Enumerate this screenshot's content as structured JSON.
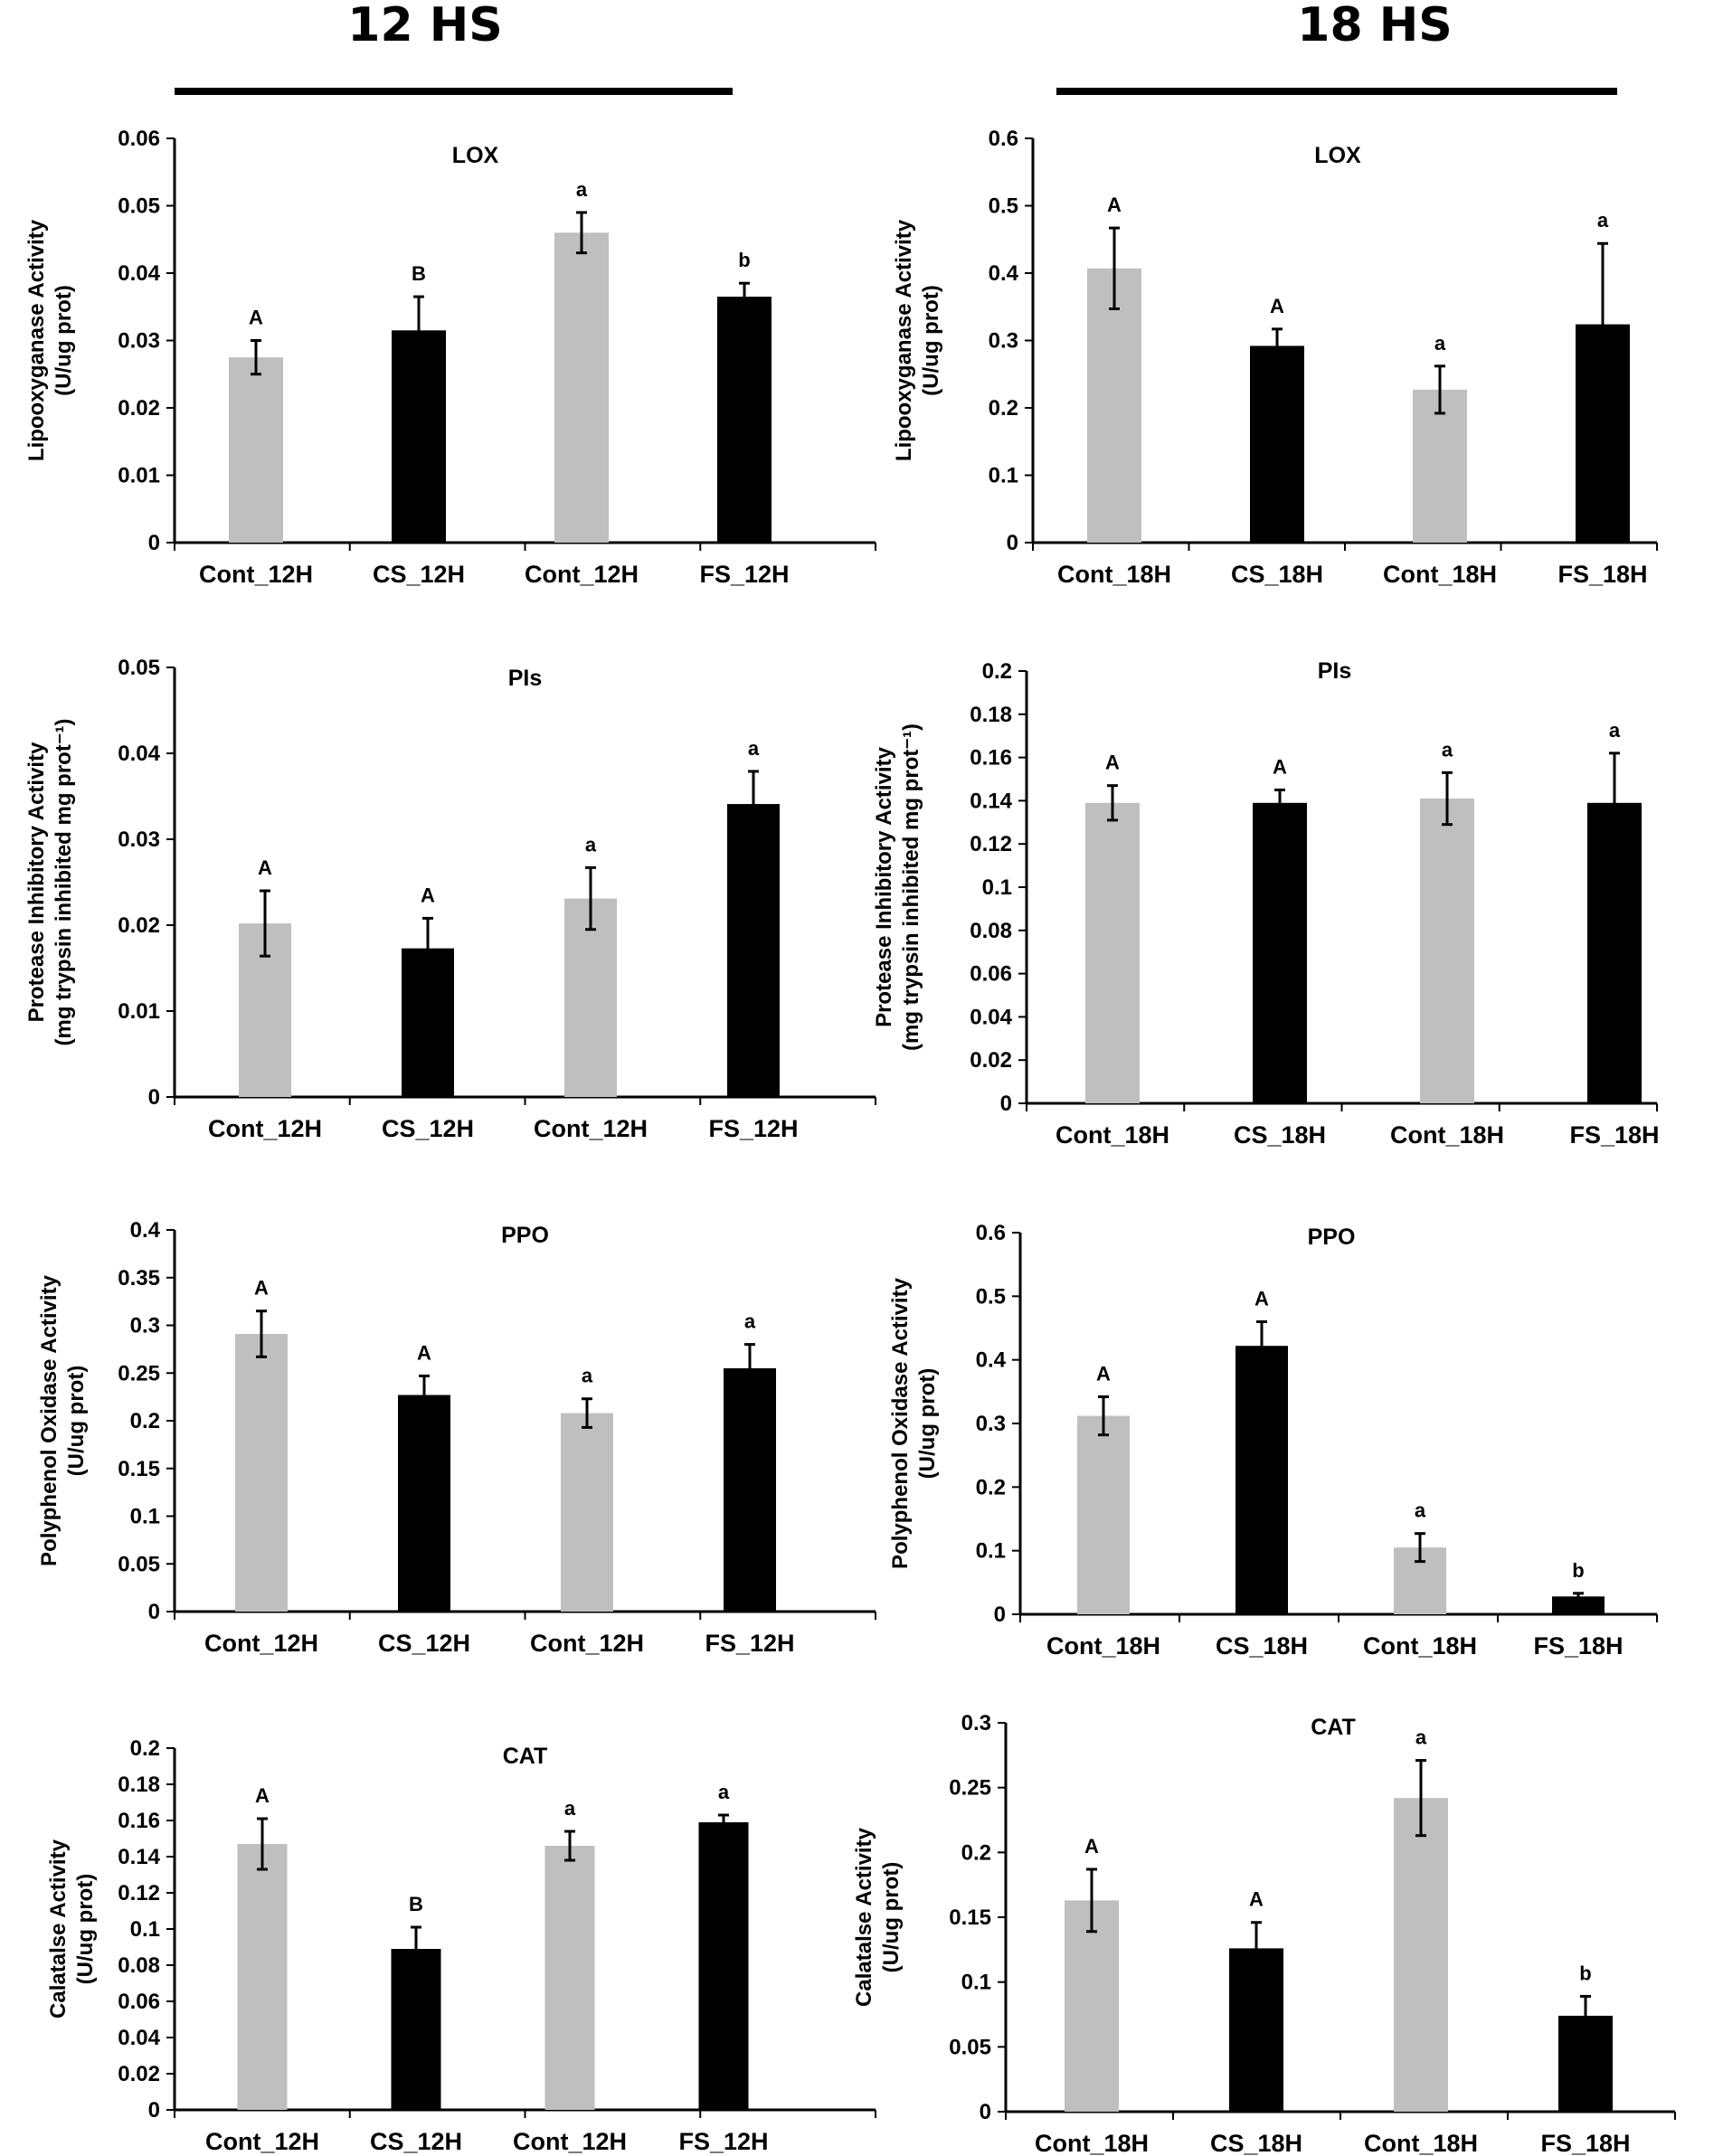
{
  "headings": {
    "left": "12 HS",
    "right": "18 HS"
  },
  "colors": {
    "gray_bar": "#bfbfbf",
    "black_bar": "#000000",
    "axis": "#000000"
  },
  "chart_data": [
    {
      "type": "bar",
      "title": "LOX",
      "ylabel_line1": "Lipooxyganase Activity",
      "ylabel_line2": "(U/ug prot)",
      "ylim": [
        0,
        0.06
      ],
      "ytick_values": [
        0,
        0.01,
        0.02,
        0.03,
        0.04,
        0.05,
        0.06
      ],
      "ytick_labels": [
        "0",
        "0.01",
        "0.02",
        "0.03",
        "0.04",
        "0.05",
        "0.06"
      ],
      "categories": [
        "Cont_12H",
        "CS_12H",
        "Cont_12H",
        "FS_12H"
      ],
      "values": [
        0.0275,
        0.0315,
        0.046,
        0.0365
      ],
      "errors": [
        0.0025,
        0.005,
        0.003,
        0.002
      ],
      "bar_colors": [
        "gray",
        "black",
        "gray",
        "black"
      ],
      "sig_labels": [
        "A",
        "B",
        "a",
        "b"
      ]
    },
    {
      "type": "bar",
      "title": "LOX",
      "ylabel_line1": "Lipooxyganase Activity",
      "ylabel_line2": "(U/ug prot)",
      "ylim": [
        0,
        0.6
      ],
      "ytick_values": [
        0,
        0.1,
        0.2,
        0.3,
        0.4,
        0.5,
        0.6
      ],
      "ytick_labels": [
        "0",
        "0.1",
        "0.2",
        "0.3",
        "0.4",
        "0.5",
        "0.6"
      ],
      "categories": [
        "Cont_18H",
        "CS_18H",
        "Cont_18H",
        "FS_18H"
      ],
      "values": [
        0.407,
        0.292,
        0.227,
        0.324
      ],
      "errors": [
        0.06,
        0.025,
        0.035,
        0.12
      ],
      "bar_colors": [
        "gray",
        "black",
        "gray",
        "black"
      ],
      "sig_labels": [
        "A",
        "A",
        "a",
        "a"
      ]
    },
    {
      "type": "bar",
      "title": "PIs",
      "ylabel_line1": "Protease Inhibitory Activity",
      "ylabel_line2": "(mg trypsin inhibited mg prot⁻¹)",
      "ylim": [
        0,
        0.05
      ],
      "ytick_values": [
        0,
        0.01,
        0.02,
        0.03,
        0.04,
        0.05
      ],
      "ytick_labels": [
        "0",
        "0.01",
        "0.02",
        "0.03",
        "0.04",
        "0.05"
      ],
      "categories": [
        "Cont_12H",
        "CS_12H",
        "Cont_12H",
        "FS_12H"
      ],
      "values": [
        0.0202,
        0.0173,
        0.0231,
        0.0341
      ],
      "errors": [
        0.0038,
        0.0035,
        0.0036,
        0.0038
      ],
      "bar_colors": [
        "gray",
        "black",
        "gray",
        "black"
      ],
      "sig_labels": [
        "A",
        "A",
        "a",
        "a"
      ]
    },
    {
      "type": "bar",
      "title": "PIs",
      "ylabel_line1": "Protease Inhibitory Activity",
      "ylabel_line2": "(mg trypsin inhibited mg prot⁻¹)",
      "ylim": [
        0,
        0.2
      ],
      "ytick_values": [
        0,
        0.02,
        0.04,
        0.06,
        0.08,
        0.1,
        0.12,
        0.14,
        0.16,
        0.18,
        0.2
      ],
      "ytick_labels": [
        "0",
        "0.02",
        "0.04",
        "0.06",
        "0.08",
        "0.1",
        "0.12",
        "0.14",
        "0.16",
        "0.18",
        "0.2"
      ],
      "categories": [
        "Cont_18H",
        "CS_18H",
        "Cont_18H",
        "FS_18H"
      ],
      "values": [
        0.139,
        0.139,
        0.141,
        0.139
      ],
      "errors": [
        0.008,
        0.006,
        0.012,
        0.023
      ],
      "bar_colors": [
        "gray",
        "black",
        "gray",
        "black"
      ],
      "sig_labels": [
        "A",
        "A",
        "a",
        "a"
      ]
    },
    {
      "type": "bar",
      "title": "PPO",
      "ylabel_line1": "Polyphenol Oxidase Activity",
      "ylabel_line2": "(U/ug prot)",
      "ylim": [
        0,
        0.4
      ],
      "ytick_values": [
        0,
        0.05,
        0.1,
        0.15,
        0.2,
        0.25,
        0.3,
        0.35,
        0.4
      ],
      "ytick_labels": [
        "0",
        "0.05",
        "0.1",
        "0.15",
        "0.2",
        "0.25",
        "0.3",
        "0.35",
        "0.4"
      ],
      "categories": [
        "Cont_12H",
        "CS_12H",
        "Cont_12H",
        "FS_12H"
      ],
      "values": [
        0.291,
        0.227,
        0.208,
        0.255
      ],
      "errors": [
        0.024,
        0.02,
        0.015,
        0.025
      ],
      "bar_colors": [
        "gray",
        "black",
        "gray",
        "black"
      ],
      "sig_labels": [
        "A",
        "A",
        "a",
        "a"
      ]
    },
    {
      "type": "bar",
      "title": "PPO",
      "ylabel_line1": "Polyphenol Oxidase Activity",
      "ylabel_line2": "(U/ug prot)",
      "ylim": [
        0,
        0.6
      ],
      "ytick_values": [
        0,
        0.1,
        0.2,
        0.3,
        0.4,
        0.5,
        0.6
      ],
      "ytick_labels": [
        "0",
        "0.1",
        "0.2",
        "0.3",
        "0.4",
        "0.5",
        "0.6"
      ],
      "categories": [
        "Cont_18H",
        "CS_18H",
        "Cont_18H",
        "FS_18H"
      ],
      "values": [
        0.312,
        0.422,
        0.105,
        0.028
      ],
      "errors": [
        0.03,
        0.038,
        0.022,
        0.005
      ],
      "bar_colors": [
        "gray",
        "black",
        "gray",
        "black"
      ],
      "sig_labels": [
        "A",
        "A",
        "a",
        "b"
      ]
    },
    {
      "type": "bar",
      "title": "CAT",
      "ylabel_line1": "Calatalse Activity",
      "ylabel_line2": "(U/ug prot)",
      "ylim": [
        0,
        0.2
      ],
      "ytick_values": [
        0,
        0.02,
        0.04,
        0.06,
        0.08,
        0.1,
        0.12,
        0.14,
        0.16,
        0.18,
        0.2
      ],
      "ytick_labels": [
        "0",
        "0.02",
        "0.04",
        "0.06",
        "0.08",
        "0.1",
        "0.12",
        "0.14",
        "0.16",
        "0.18",
        "0.2"
      ],
      "categories": [
        "Cont_12H",
        "CS_12H",
        "Cont_12H",
        "FS_12H"
      ],
      "values": [
        0.147,
        0.089,
        0.146,
        0.159
      ],
      "errors": [
        0.014,
        0.012,
        0.008,
        0.004
      ],
      "bar_colors": [
        "gray",
        "black",
        "gray",
        "black"
      ],
      "sig_labels": [
        "A",
        "B",
        "a",
        "a"
      ]
    },
    {
      "type": "bar",
      "title": "CAT",
      "ylabel_line1": "Calatalse Activity",
      "ylabel_line2": "(U/ug prot)",
      "ylim": [
        0,
        0.3
      ],
      "ytick_values": [
        0,
        0.05,
        0.1,
        0.15,
        0.2,
        0.25,
        0.3
      ],
      "ytick_labels": [
        "0",
        "0.05",
        "0.1",
        "0.15",
        "0.2",
        "0.25",
        "0.3"
      ],
      "categories": [
        "Cont_18H",
        "CS_18H",
        "Cont_18H",
        "FS_18H"
      ],
      "values": [
        0.163,
        0.126,
        0.242,
        0.074
      ],
      "errors": [
        0.024,
        0.02,
        0.029,
        0.015
      ],
      "bar_colors": [
        "gray",
        "black",
        "gray",
        "black"
      ],
      "sig_labels": [
        "A",
        "A",
        "a",
        "b"
      ]
    }
  ]
}
